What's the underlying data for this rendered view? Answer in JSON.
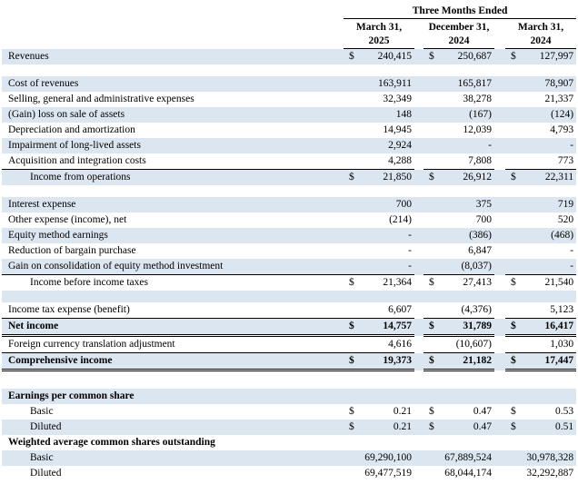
{
  "header": {
    "group_title": "Three Months Ended",
    "columns": [
      {
        "line1": "March 31,",
        "line2": "2025"
      },
      {
        "line1": "December 31,",
        "line2": "2024"
      },
      {
        "line1": "March 31,",
        "line2": "2024"
      }
    ]
  },
  "colors": {
    "row_shade": "#DCE6F1",
    "rule": "#000000",
    "text": "#000000",
    "background": "#FFFFFF"
  },
  "rows": [
    {
      "label": "Revenues",
      "dollar": true,
      "values": [
        "240,415",
        "250,687",
        "127,997"
      ],
      "shaded": true
    },
    {
      "blank": true,
      "shaded": false,
      "height": 13
    },
    {
      "label": "Cost of revenues",
      "dollar": false,
      "values": [
        "163,911",
        "165,817",
        "78,907"
      ],
      "shaded": true
    },
    {
      "label": "Selling, general and administrative expenses",
      "dollar": false,
      "values": [
        "32,349",
        "38,278",
        "21,337"
      ],
      "shaded": false
    },
    {
      "label": "(Gain) loss on sale of assets",
      "dollar": false,
      "values": [
        "148",
        "(167)",
        "(124)"
      ],
      "shaded": true
    },
    {
      "label": "Depreciation and amortization",
      "dollar": false,
      "values": [
        "14,945",
        "12,039",
        "4,793"
      ],
      "shaded": false
    },
    {
      "label": "Impairment of long-lived assets",
      "dollar": false,
      "values": [
        "2,924",
        "-",
        "-"
      ],
      "shaded": true
    },
    {
      "label": "Acquisition and integration costs",
      "dollar": false,
      "values": [
        "4,288",
        "7,808",
        "773"
      ],
      "shaded": false,
      "rule": "single"
    },
    {
      "label": "Income from operations",
      "dollar": true,
      "values": [
        "21,850",
        "26,912",
        "22,311"
      ],
      "shaded": true,
      "indent": true
    },
    {
      "blank": true,
      "shaded": false,
      "height": 13
    },
    {
      "label": "Interest expense",
      "dollar": false,
      "values": [
        "700",
        "375",
        "719"
      ],
      "shaded": true
    },
    {
      "label": "Other expense (income), net",
      "dollar": false,
      "values": [
        "(214)",
        "700",
        "520"
      ],
      "shaded": false
    },
    {
      "label": "Equity method earnings",
      "dollar": false,
      "values": [
        "-",
        "(386)",
        "(468)"
      ],
      "shaded": true
    },
    {
      "label": "Reduction of bargain purchase",
      "dollar": false,
      "values": [
        "-",
        "6,847",
        "-"
      ],
      "shaded": false
    },
    {
      "label": "Gain on consolidation of equity method investment",
      "dollar": false,
      "values": [
        "-",
        "(8,037)",
        "-"
      ],
      "shaded": true,
      "rule": "single"
    },
    {
      "label": "Income before income taxes",
      "dollar": true,
      "values": [
        "21,364",
        "27,413",
        "21,540"
      ],
      "shaded": false,
      "indent": true
    },
    {
      "blank": true,
      "shaded": true,
      "height": 13
    },
    {
      "label": "Income tax expense (benefit)",
      "dollar": false,
      "values": [
        "6,607",
        "(4,376)",
        "5,123"
      ],
      "shaded": false,
      "rule": "single"
    },
    {
      "label": "Net income",
      "dollar": true,
      "values": [
        "14,757",
        "31,789",
        "16,417"
      ],
      "shaded": true,
      "bold": true,
      "rule": "double"
    },
    {
      "label": "Foreign currency translation adjustment",
      "dollar": false,
      "values": [
        "4,616",
        "(10,607)",
        "1,030"
      ],
      "shaded": false,
      "rule": "single"
    },
    {
      "label": "Comprehensive income",
      "dollar": true,
      "values": [
        "19,373",
        "21,182",
        "17,447"
      ],
      "shaded": true,
      "bold": true,
      "rule": "double"
    },
    {
      "blank": true,
      "shaded": false,
      "height": 19
    },
    {
      "label": "Earnings per common share",
      "dollar": false,
      "values": [
        "",
        "",
        ""
      ],
      "shaded": true,
      "bold": true
    },
    {
      "label": "Basic",
      "dollar": true,
      "values": [
        "0.21",
        "0.47",
        "0.53"
      ],
      "shaded": false,
      "indent": true
    },
    {
      "label": "Diluted",
      "dollar": true,
      "values": [
        "0.21",
        "0.47",
        "0.51"
      ],
      "shaded": true,
      "indent": true
    },
    {
      "label": "Weighted average common shares outstanding",
      "dollar": false,
      "values": [
        "",
        "",
        ""
      ],
      "shaded": false,
      "bold": true
    },
    {
      "label": "Basic",
      "dollar": false,
      "values": [
        "69,290,100",
        "67,889,524",
        "30,978,328"
      ],
      "shaded": true,
      "indent": true
    },
    {
      "label": "Diluted",
      "dollar": false,
      "values": [
        "69,477,519",
        "68,044,174",
        "32,292,887"
      ],
      "shaded": false,
      "indent": true
    }
  ]
}
